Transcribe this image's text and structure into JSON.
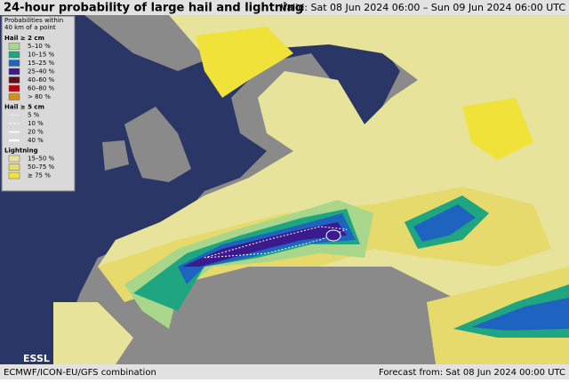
{
  "header": {
    "title": "24-hour probability of large hail and lightning",
    "valid": "Valid: Sat 08 Jun 2024 06:00 – Sun 09 Jun 2024 06:00 UTC"
  },
  "legend": {
    "title": [
      "Probabilities within",
      "40 km of a point"
    ],
    "sections": [
      {
        "title": "Hail ≥ 2 cm",
        "kind": "fill",
        "items": [
          {
            "label": "5–10 %",
            "color": "#a8d68a"
          },
          {
            "label": "10–15 %",
            "color": "#1fa57f"
          },
          {
            "label": "15–25 %",
            "color": "#1f63c0"
          },
          {
            "label": "25–40 %",
            "color": "#3b1a8e"
          },
          {
            "label": "40–60 %",
            "color": "#5e0f1f"
          },
          {
            "label": "60–80 %",
            "color": "#c40000"
          },
          {
            "label": "> 80 %",
            "color": "#d49010"
          }
        ]
      },
      {
        "title": "Hail ≥ 5 cm",
        "kind": "line",
        "items": [
          {
            "label": "5 %",
            "color": "#ffffff"
          },
          {
            "label": "10 %",
            "color": "#ffffff"
          },
          {
            "label": "20 %",
            "color": "#ffffff"
          },
          {
            "label": "40 %",
            "color": "#ffffff"
          }
        ]
      },
      {
        "title": "Lightning",
        "kind": "fill",
        "items": [
          {
            "label": "15–50 %",
            "color": "#e7e39a"
          },
          {
            "label": "50–75 %",
            "color": "#e6da6c"
          },
          {
            "label": "≥ 75 %",
            "color": "#f1e23a"
          }
        ]
      }
    ]
  },
  "footer": {
    "left": "ECMWF/ICON-EU/GFS combination",
    "right": "Forecast from: Sat 08 Jun 2024 00:00 UTC"
  },
  "logo": "ESSL"
}
